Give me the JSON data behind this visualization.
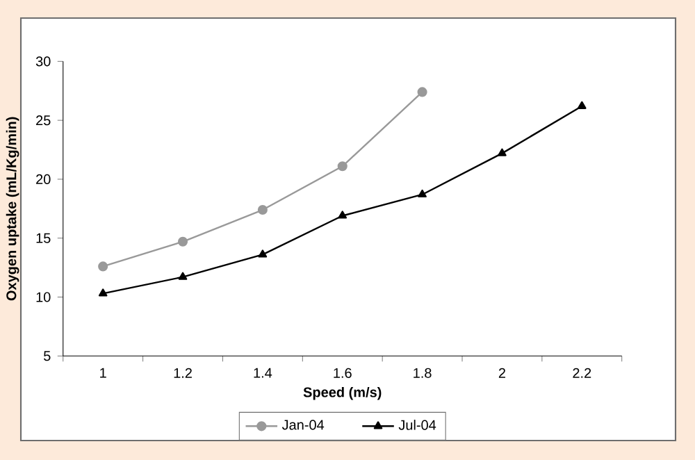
{
  "chart_data": {
    "type": "line",
    "xlabel": "Speed (m/s)",
    "ylabel": "Oxygen uptake (mL/Kg/min)",
    "categories": [
      "1",
      "1.2",
      "1.4",
      "1.6",
      "1.8",
      "2",
      "2.2"
    ],
    "ylim": [
      5,
      30
    ],
    "yticks": [
      5,
      10,
      15,
      20,
      25,
      30
    ],
    "grid": false,
    "legend": "bottom",
    "series": [
      {
        "name": "Jan-04",
        "color": "#999999",
        "marker": "circle",
        "values": [
          12.6,
          14.7,
          17.4,
          21.1,
          27.4,
          null,
          null
        ]
      },
      {
        "name": "Jul-04",
        "color": "#000000",
        "marker": "triangle",
        "values": [
          10.3,
          11.7,
          13.6,
          16.9,
          18.7,
          22.2,
          26.2
        ]
      }
    ]
  }
}
